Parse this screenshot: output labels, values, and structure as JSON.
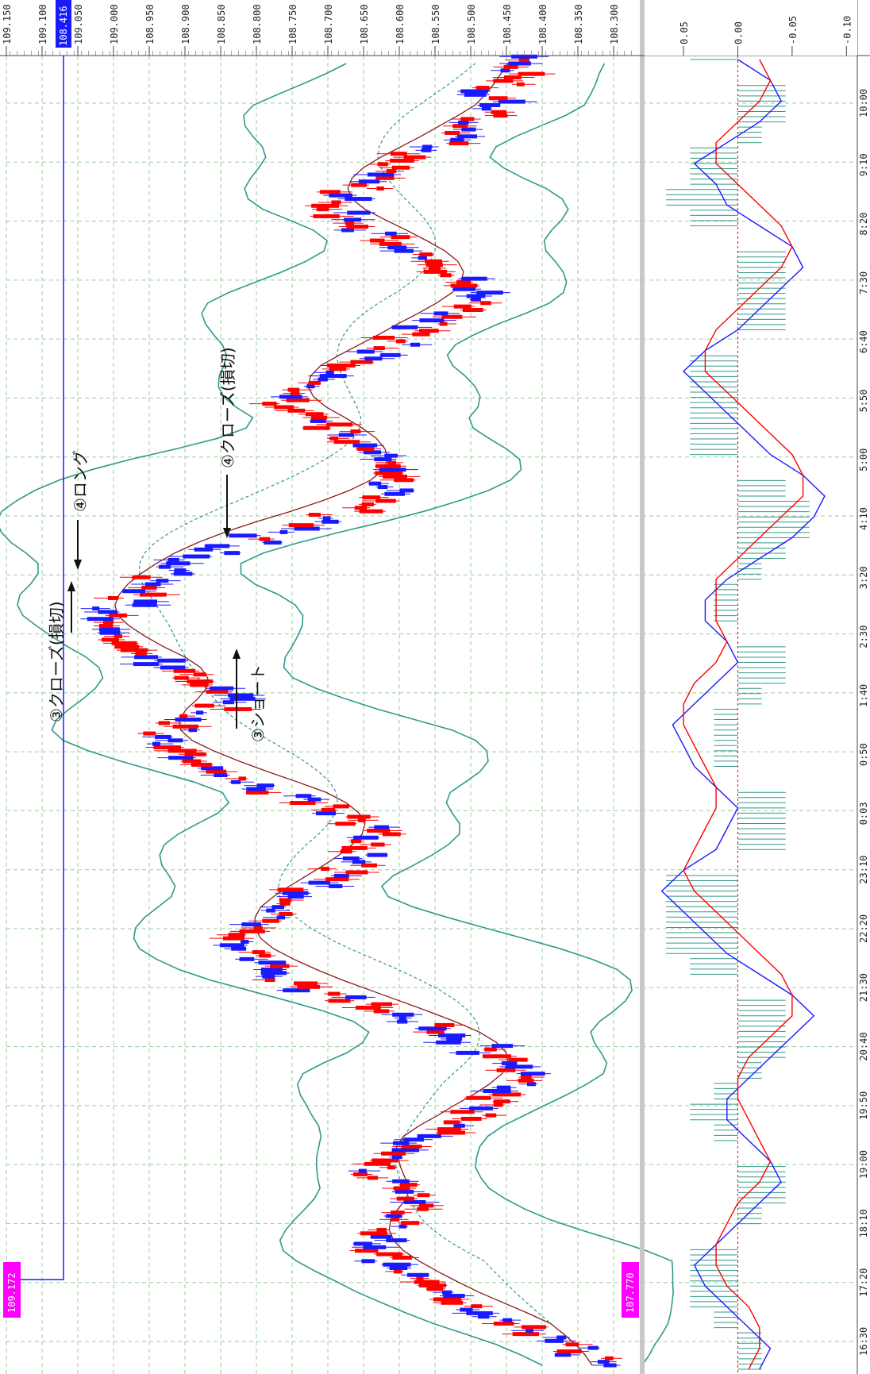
{
  "colors": {
    "up_candle": "#ff0000",
    "down_candle": "#1a1aff",
    "band": "#2f9a8a",
    "mid_band": "#2f9a8a",
    "moving_average": "#8b1a1a",
    "grid": "#9acd9a",
    "macd_line": "#1a1aff",
    "signal_line": "#ff0000",
    "histogram": "#2f9a8a",
    "price_tag": "#ff00ff",
    "current_price_tag": "#1a1aff"
  },
  "chart_data": [
    {
      "type": "candlestick",
      "orientation": "rotated 90° clockwise (time runs bottom→top, price increases to the left)",
      "price_axis": {
        "ticks": [
          "109.150",
          "109.100",
          "109.050",
          "109.000",
          "108.950",
          "108.900",
          "108.850",
          "108.800",
          "108.750",
          "108.700",
          "108.650",
          "108.600",
          "108.550",
          "108.500",
          "108.450",
          "108.400",
          "108.350",
          "108.300"
        ],
        "range": [
          108.27,
          109.15
        ]
      },
      "time_axis": {
        "ticks": [
          "16:30",
          "17:20",
          "18:10",
          "19:00",
          "19:50",
          "20:40",
          "21:30",
          "22:20",
          "23:10",
          "0:03",
          "0:50",
          "1:40",
          "2:30",
          "3:20",
          "4:10",
          "5:00",
          "5:50",
          "6:40",
          "7:30",
          "8:20",
          "9:10",
          "10:00"
        ]
      },
      "current_price": "108.416",
      "high_tag": "109.172",
      "low_tag": "107.770",
      "series": [
        {
          "name": "Bollinger upper",
          "kind": "line"
        },
        {
          "name": "Bollinger lower",
          "kind": "line"
        },
        {
          "name": "Bollinger middle",
          "kind": "dashed line"
        },
        {
          "name": "Moving average",
          "kind": "line"
        }
      ],
      "candles_mid": [
        108.33,
        108.35,
        108.38,
        108.42,
        108.46,
        108.49,
        108.52,
        108.55,
        108.57,
        108.6,
        108.62,
        108.63,
        108.62,
        108.6,
        108.59,
        108.57,
        108.57,
        108.6,
        108.63,
        108.62,
        108.59,
        108.58,
        108.55,
        108.52,
        108.49,
        108.47,
        108.45,
        108.44,
        108.43,
        108.45,
        108.48,
        108.52,
        108.56,
        108.6,
        108.64,
        108.68,
        108.72,
        108.76,
        108.78,
        108.8,
        108.82,
        108.81,
        108.8,
        108.78,
        108.76,
        108.73,
        108.7,
        108.68,
        108.66,
        108.65,
        108.64,
        108.63,
        108.66,
        108.7,
        108.74,
        108.78,
        108.83,
        108.87,
        108.9,
        108.92,
        108.93,
        108.91,
        108.88,
        108.85,
        108.84,
        108.87,
        108.9,
        108.93,
        108.96,
        108.99,
        109.0,
        109.01,
        109.01,
        108.98,
        108.96,
        108.94,
        108.92,
        108.9,
        108.85,
        108.8,
        108.75,
        108.7,
        108.66,
        108.63,
        108.61,
        108.6,
        108.61,
        108.63,
        108.65,
        108.67,
        108.7,
        108.73,
        108.76,
        108.74,
        108.71,
        108.68,
        108.66,
        108.63,
        108.6,
        108.57,
        108.55,
        108.52,
        108.5,
        108.49,
        108.51,
        108.53,
        108.56,
        108.59,
        108.62,
        108.65,
        108.68,
        108.7,
        108.68,
        108.65,
        108.62,
        108.6,
        108.58,
        108.54,
        108.51,
        108.49,
        108.47,
        108.46,
        108.47,
        108.45,
        108.44,
        108.42
      ],
      "macd_panel": {
        "ticks": [
          "0.05",
          "0.00",
          "-0.05",
          "-0.10"
        ],
        "range": [
          0.08,
          -0.11
        ],
        "series": [
          {
            "name": "MACD",
            "kind": "line"
          },
          {
            "name": "Signal",
            "kind": "line"
          },
          {
            "name": "Histogram",
            "kind": "bars"
          }
        ],
        "macd": [
          -0.02,
          -0.03,
          -0.01,
          0.01,
          0.03,
          0.04,
          0.02,
          0.0,
          -0.02,
          -0.04,
          -0.03,
          -0.01,
          0.01,
          0.01,
          -0.01,
          -0.03,
          -0.05,
          -0.07,
          -0.05,
          -0.02,
          0.01,
          0.03,
          0.05,
          0.07,
          0.05,
          0.02,
          0.01,
          0.0,
          0.02,
          0.04,
          0.05,
          0.06,
          0.04,
          0.02,
          0.0,
          0.01,
          0.03,
          0.03,
          0.01,
          -0.02,
          -0.05,
          -0.07,
          -0.08,
          -0.06,
          -0.03,
          -0.01,
          0.01,
          0.03,
          0.05,
          0.03,
          0.0,
          -0.02,
          -0.04,
          -0.06,
          -0.05,
          -0.02,
          0.01,
          0.02,
          0.04,
          0.01,
          -0.02,
          -0.04,
          -0.03,
          0.0
        ],
        "signal": [
          -0.01,
          -0.02,
          -0.02,
          -0.01,
          0.01,
          0.02,
          0.02,
          0.01,
          0.0,
          -0.02,
          -0.03,
          -0.02,
          -0.01,
          0.0,
          0.0,
          -0.01,
          -0.03,
          -0.05,
          -0.05,
          -0.04,
          -0.02,
          0.0,
          0.02,
          0.04,
          0.05,
          0.04,
          0.03,
          0.02,
          0.02,
          0.03,
          0.04,
          0.05,
          0.05,
          0.04,
          0.02,
          0.01,
          0.02,
          0.02,
          0.02,
          0.0,
          -0.02,
          -0.04,
          -0.06,
          -0.06,
          -0.05,
          -0.03,
          -0.01,
          0.01,
          0.03,
          0.03,
          0.02,
          0.0,
          -0.02,
          -0.04,
          -0.05,
          -0.04,
          -0.02,
          0.0,
          0.02,
          0.02,
          0.0,
          -0.02,
          -0.03,
          -0.02
        ]
      },
      "annotations": [
        {
          "label": "③クローズ(損切)"
        },
        {
          "label": "④ロング"
        },
        {
          "label": "④クローズ(損切)"
        },
        {
          "label": "③ショート"
        }
      ]
    }
  ]
}
